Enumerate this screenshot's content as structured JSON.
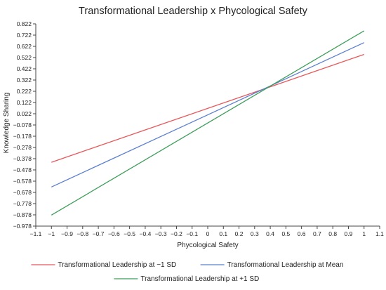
{
  "chart_data": {
    "type": "line",
    "title": "Transformational Leadership x Phycological Safety",
    "xlabel": "Phycological Safety",
    "ylabel": "Knowledge Sharing",
    "xlim": [
      -1.1,
      1.1
    ],
    "ylim": [
      -0.978,
      0.822
    ],
    "x_ticks": [
      "−1.1",
      "−1",
      "−0.9",
      "−0.8",
      "−0.7",
      "−0.6",
      "−0.5",
      "−0.4",
      "−0.3",
      "−0.2",
      "−0.1",
      "0",
      "0.1",
      "0.2",
      "0.3",
      "0.4",
      "0.5",
      "0.6",
      "0.7",
      "0.8",
      "0.9",
      "1",
      "1.1"
    ],
    "y_ticks": [
      "0.822",
      "0.722",
      "0.622",
      "0.522",
      "0.422",
      "0.322",
      "0.222",
      "0.122",
      "0.022",
      "−0.078",
      "−0.178",
      "−0.278",
      "−0.378",
      "−0.478",
      "−0.578",
      "−0.678",
      "−0.778",
      "−0.878",
      "−0.978"
    ],
    "grid": false,
    "legend_position": "bottom",
    "series": [
      {
        "name": "Transformational Leadership at −1 SD",
        "color": "#e8575a",
        "x": [
          -1,
          1
        ],
        "values": [
          -0.41,
          0.55
        ]
      },
      {
        "name": "Transformational Leadership at Mean",
        "color": "#5b7fd1",
        "x": [
          -1,
          1
        ],
        "values": [
          -0.63,
          0.655
        ]
      },
      {
        "name": "Transformational Leadership at +1 SD",
        "color": "#3f9e5a",
        "x": [
          -1,
          1
        ],
        "values": [
          -0.88,
          0.76
        ]
      }
    ]
  }
}
